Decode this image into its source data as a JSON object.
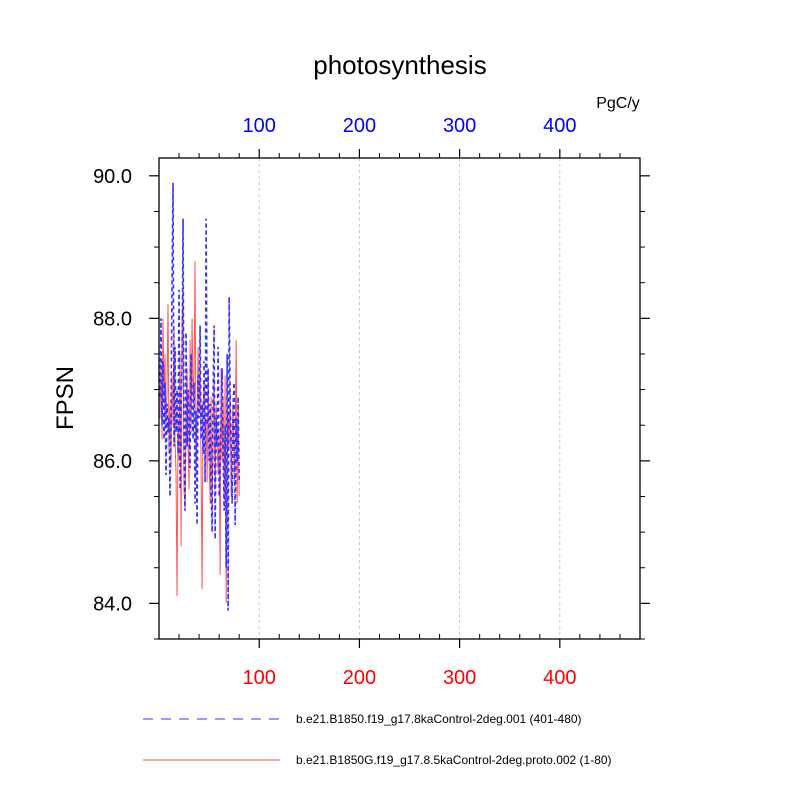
{
  "chart_data": {
    "type": "line",
    "title": "photosynthesis",
    "ylabel": "FPSN",
    "top_axis_unit": "PgC/y",
    "xlim": [
      0,
      480
    ],
    "ylim": [
      83.5,
      90.25
    ],
    "x_ticks": [
      100,
      200,
      300,
      400
    ],
    "x_tick_labels": [
      "100",
      "200",
      "300",
      "400"
    ],
    "y_ticks": [
      84.0,
      86.0,
      88.0,
      90.0
    ],
    "y_tick_labels": [
      "84.0",
      "86.0",
      "88.0",
      "90.0"
    ],
    "grid": "vertical-dashed",
    "legend_position": "bottom",
    "colors": {
      "top_axis": "#0000ff",
      "bottom_axis": "#ff0000",
      "frame": "#000000",
      "grid": "#bbbbbb"
    },
    "series": [
      {
        "name": "b.e21.B1850.f19_g17.8kaControl-2deg.001 (401-480)",
        "color": "#3333ff",
        "dash": "dashed",
        "x": [
          1,
          2,
          3,
          4,
          5,
          6,
          7,
          8,
          9,
          10,
          11,
          12,
          13,
          14,
          15,
          16,
          17,
          18,
          19,
          20,
          21,
          22,
          23,
          24,
          25,
          26,
          27,
          28,
          29,
          30,
          31,
          32,
          33,
          34,
          35,
          36,
          37,
          38,
          39,
          40,
          41,
          42,
          43,
          44,
          45,
          46,
          47,
          48,
          49,
          50,
          51,
          52,
          53,
          54,
          55,
          56,
          57,
          58,
          59,
          60,
          61,
          62,
          63,
          64,
          65,
          66,
          67,
          68,
          69,
          70,
          71,
          72,
          73,
          74,
          75,
          76,
          77,
          78,
          79,
          80
        ],
        "y": [
          86.9,
          88.0,
          86.5,
          87.4,
          86.3,
          87.1,
          85.8,
          86.8,
          86.4,
          86.6,
          85.5,
          86.7,
          88.5,
          89.9,
          86.2,
          87.6,
          86.4,
          87.0,
          86.1,
          88.4,
          85.6,
          86.9,
          87.3,
          89.4,
          86.0,
          85.3,
          87.8,
          86.2,
          87.0,
          86.4,
          85.9,
          87.5,
          86.8,
          86.3,
          87.1,
          85.4,
          86.7,
          85.1,
          87.2,
          86.6,
          87.9,
          86.3,
          86.8,
          86.1,
          87.4,
          85.7,
          89.4,
          86.5,
          87.3,
          86.0,
          86.8,
          85.6,
          85.0,
          87.0,
          87.9,
          84.9,
          86.6,
          86.2,
          87.6,
          85.5,
          85.9,
          86.7,
          87.3,
          86.1,
          85.3,
          86.5,
          84.5,
          87.5,
          83.9,
          88.3,
          86.9,
          86.2,
          85.4,
          86.8,
          87.1,
          85.1,
          86.6,
          86.0,
          86.9,
          85.7
        ]
      },
      {
        "name": "b.e21.B1850G.f19_g17.8.5kaControl-2deg.proto.002 (1-80)",
        "color": "#ff5555",
        "dash": "solid",
        "x": [
          1,
          2,
          3,
          4,
          5,
          6,
          7,
          8,
          9,
          10,
          11,
          12,
          13,
          14,
          15,
          16,
          17,
          18,
          19,
          20,
          21,
          22,
          23,
          24,
          25,
          26,
          27,
          28,
          29,
          30,
          31,
          32,
          33,
          34,
          35,
          36,
          37,
          38,
          39,
          40,
          41,
          42,
          43,
          44,
          45,
          46,
          47,
          48,
          49,
          50,
          51,
          52,
          53,
          54,
          55,
          56,
          57,
          58,
          59,
          60,
          61,
          62,
          63,
          64,
          65,
          66,
          67,
          68,
          69,
          70,
          71,
          72,
          73,
          74,
          75,
          76,
          77,
          78,
          79,
          80
        ],
        "y": [
          86.6,
          87.4,
          86.3,
          88.0,
          86.9,
          87.5,
          86.5,
          87.0,
          88.2,
          86.1,
          86.8,
          85.9,
          87.2,
          86.5,
          87.9,
          86.3,
          85.8,
          84.1,
          86.5,
          86.0,
          87.5,
          84.8,
          87.9,
          88.5,
          85.6,
          85.3,
          86.6,
          87.3,
          86.2,
          85.6,
          87.7,
          86.4,
          88.0,
          86.9,
          87.2,
          88.8,
          85.8,
          86.5,
          87.6,
          86.7,
          87.4,
          85.9,
          84.2,
          86.8,
          87.1,
          86.3,
          86.6,
          85.7,
          87.3,
          86.1,
          85.4,
          86.9,
          85.2,
          86.5,
          87.2,
          85.6,
          86.8,
          86.2,
          85.8,
          86.4,
          84.4,
          87.3,
          86.0,
          86.9,
          85.5,
          87.2,
          84.0,
          85.8,
          86.7,
          86.2,
          87.0,
          85.5,
          86.4,
          86.8,
          85.7,
          86.3,
          87.7,
          85.4,
          86.8,
          85.5
        ]
      }
    ]
  }
}
